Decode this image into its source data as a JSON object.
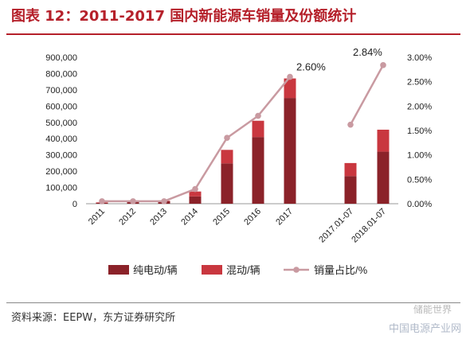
{
  "header": {
    "title": "图表 12：2011-2017 国内新能源车销量及份额统计"
  },
  "footer": {
    "source": "资料来源：EEPW，东方证券研究所",
    "watermark": "中国电源产业网",
    "logo": "储能世界"
  },
  "chart_data": {
    "type": "bar",
    "categories": [
      "2011",
      "2012",
      "2013",
      "2014",
      "2015",
      "2016",
      "2017",
      "2017.01-07",
      "2018.01-07"
    ],
    "series": [
      {
        "name": "纯电动/辆",
        "type": "bar",
        "axis": "left",
        "color": "#8b2229",
        "values": [
          5000,
          10000,
          15000,
          45000,
          248000,
          410000,
          650000,
          170000,
          320000
        ]
      },
      {
        "name": "混动/辆",
        "type": "bar",
        "axis": "left",
        "color": "#c9373f",
        "values": [
          3000,
          3000,
          3000,
          30000,
          83000,
          100000,
          120000,
          80000,
          135000
        ]
      },
      {
        "name": "销量占比/%",
        "type": "line",
        "axis": "right",
        "color": "#c99aa1",
        "values": [
          0.05,
          0.05,
          0.05,
          0.3,
          1.35,
          1.8,
          2.6,
          1.62,
          2.84
        ],
        "segments": [
          [
            0,
            6
          ],
          [
            7,
            8
          ]
        ]
      }
    ],
    "y_left": {
      "min": 0,
      "max": 900000,
      "ticks": [
        "0",
        "100,000",
        "200,000",
        "300,000",
        "400,000",
        "500,000",
        "600,000",
        "700,000",
        "800,000",
        "900,000"
      ]
    },
    "y_right": {
      "min": 0,
      "max": 3.0,
      "ticks": [
        "0.00%",
        "0.50%",
        "1.00%",
        "1.50%",
        "2.00%",
        "2.50%",
        "3.00%"
      ]
    },
    "annotations": [
      {
        "text": "2.60%",
        "series": "销量占比/%",
        "index": 6
      },
      {
        "text": "2.84%",
        "series": "销量占比/%",
        "index": 8
      }
    ],
    "legend": {
      "position": "bottom",
      "items": [
        "纯电动/辆",
        "混动/辆",
        "销量占比/%"
      ]
    },
    "grid": false
  }
}
